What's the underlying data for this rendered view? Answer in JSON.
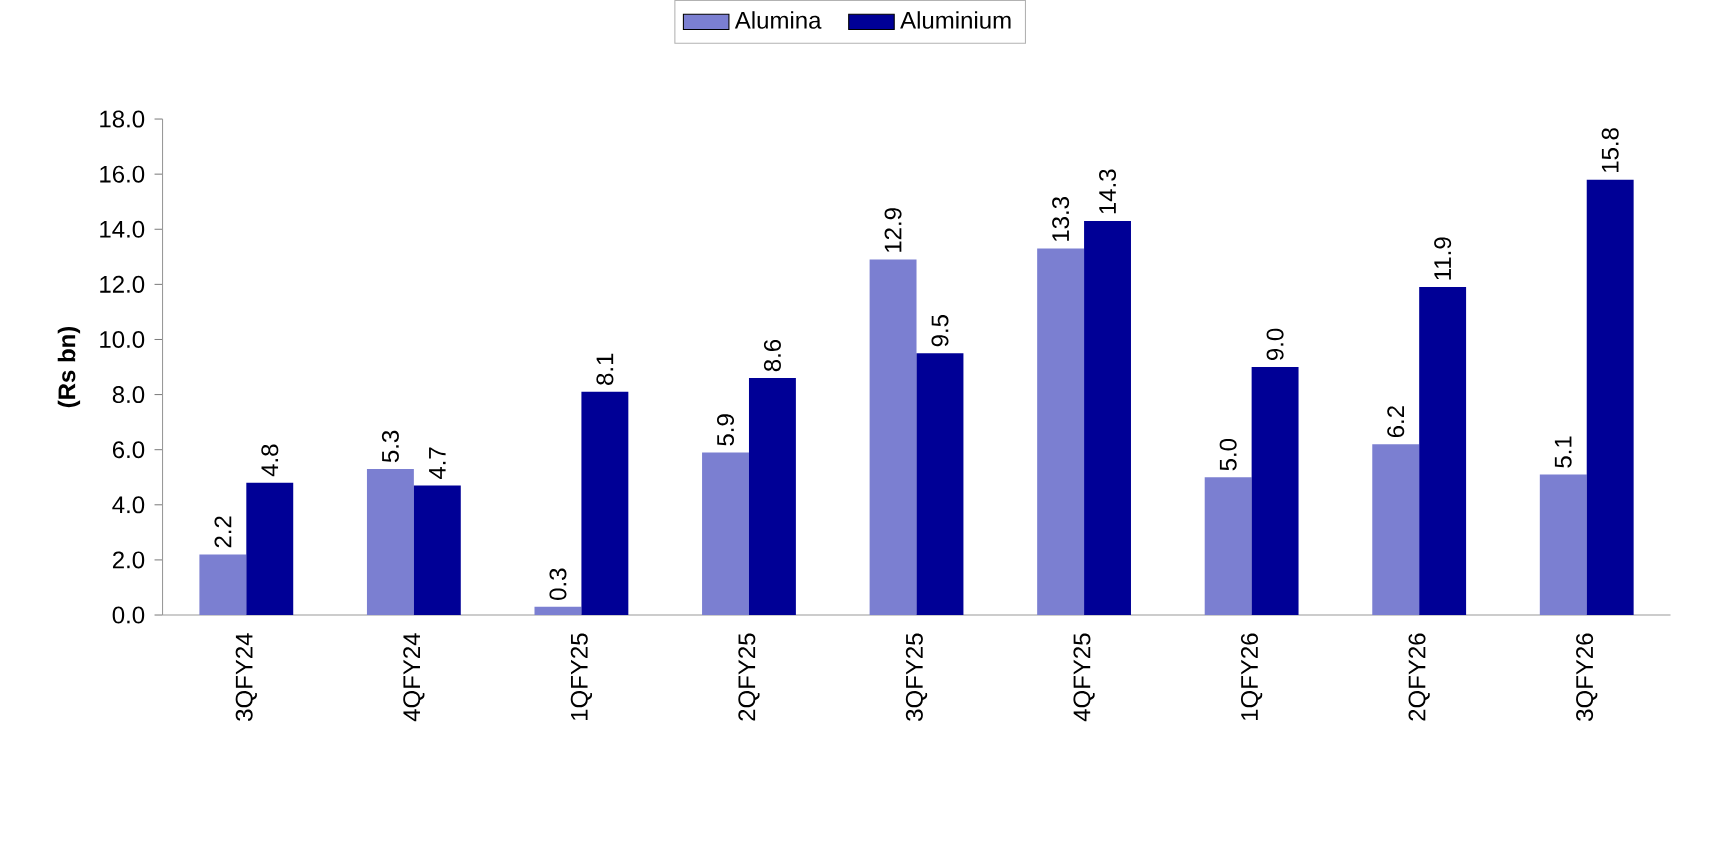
{
  "chart_data": {
    "type": "bar",
    "ylabel": "(Rs bn)",
    "categories": [
      "3QFY24",
      "4QFY24",
      "1QFY25",
      "2QFY25",
      "3QFY25",
      "4QFY25",
      "1QFY26",
      "2QFY26",
      "3QFY26"
    ],
    "series": [
      {
        "name": "Alumina",
        "color": "#7b7fd1",
        "values": [
          2.2,
          5.3,
          0.3,
          5.9,
          12.9,
          13.3,
          5.0,
          6.2,
          5.1
        ],
        "value_labels": [
          "2.2",
          "5.3",
          "0.3",
          "5.9",
          "12.9",
          "13.3",
          "5.0",
          "6.2",
          "5.1"
        ]
      },
      {
        "name": "Aluminium",
        "color": "#000096",
        "values": [
          4.8,
          4.7,
          8.1,
          8.6,
          9.5,
          14.3,
          9.0,
          11.9,
          15.8
        ],
        "value_labels": [
          "4.8",
          "4.7",
          "8.1",
          "8.6",
          "9.5",
          "14.3",
          "9.0",
          "11.9",
          "15.8"
        ]
      }
    ],
    "ylim": [
      0,
      18
    ],
    "yticks": [
      {
        "value": 0,
        "label": "0.0"
      },
      {
        "value": 2,
        "label": "2.0"
      },
      {
        "value": 4,
        "label": "4.0"
      },
      {
        "value": 6,
        "label": "6.0"
      },
      {
        "value": 8,
        "label": "8.0"
      },
      {
        "value": 10,
        "label": "10.0"
      },
      {
        "value": 12,
        "label": "12.0"
      },
      {
        "value": 14,
        "label": "14.0"
      },
      {
        "value": 16,
        "label": "16.0"
      },
      {
        "value": 18,
        "label": "18.0"
      }
    ],
    "legend": "top",
    "grid": false
  }
}
